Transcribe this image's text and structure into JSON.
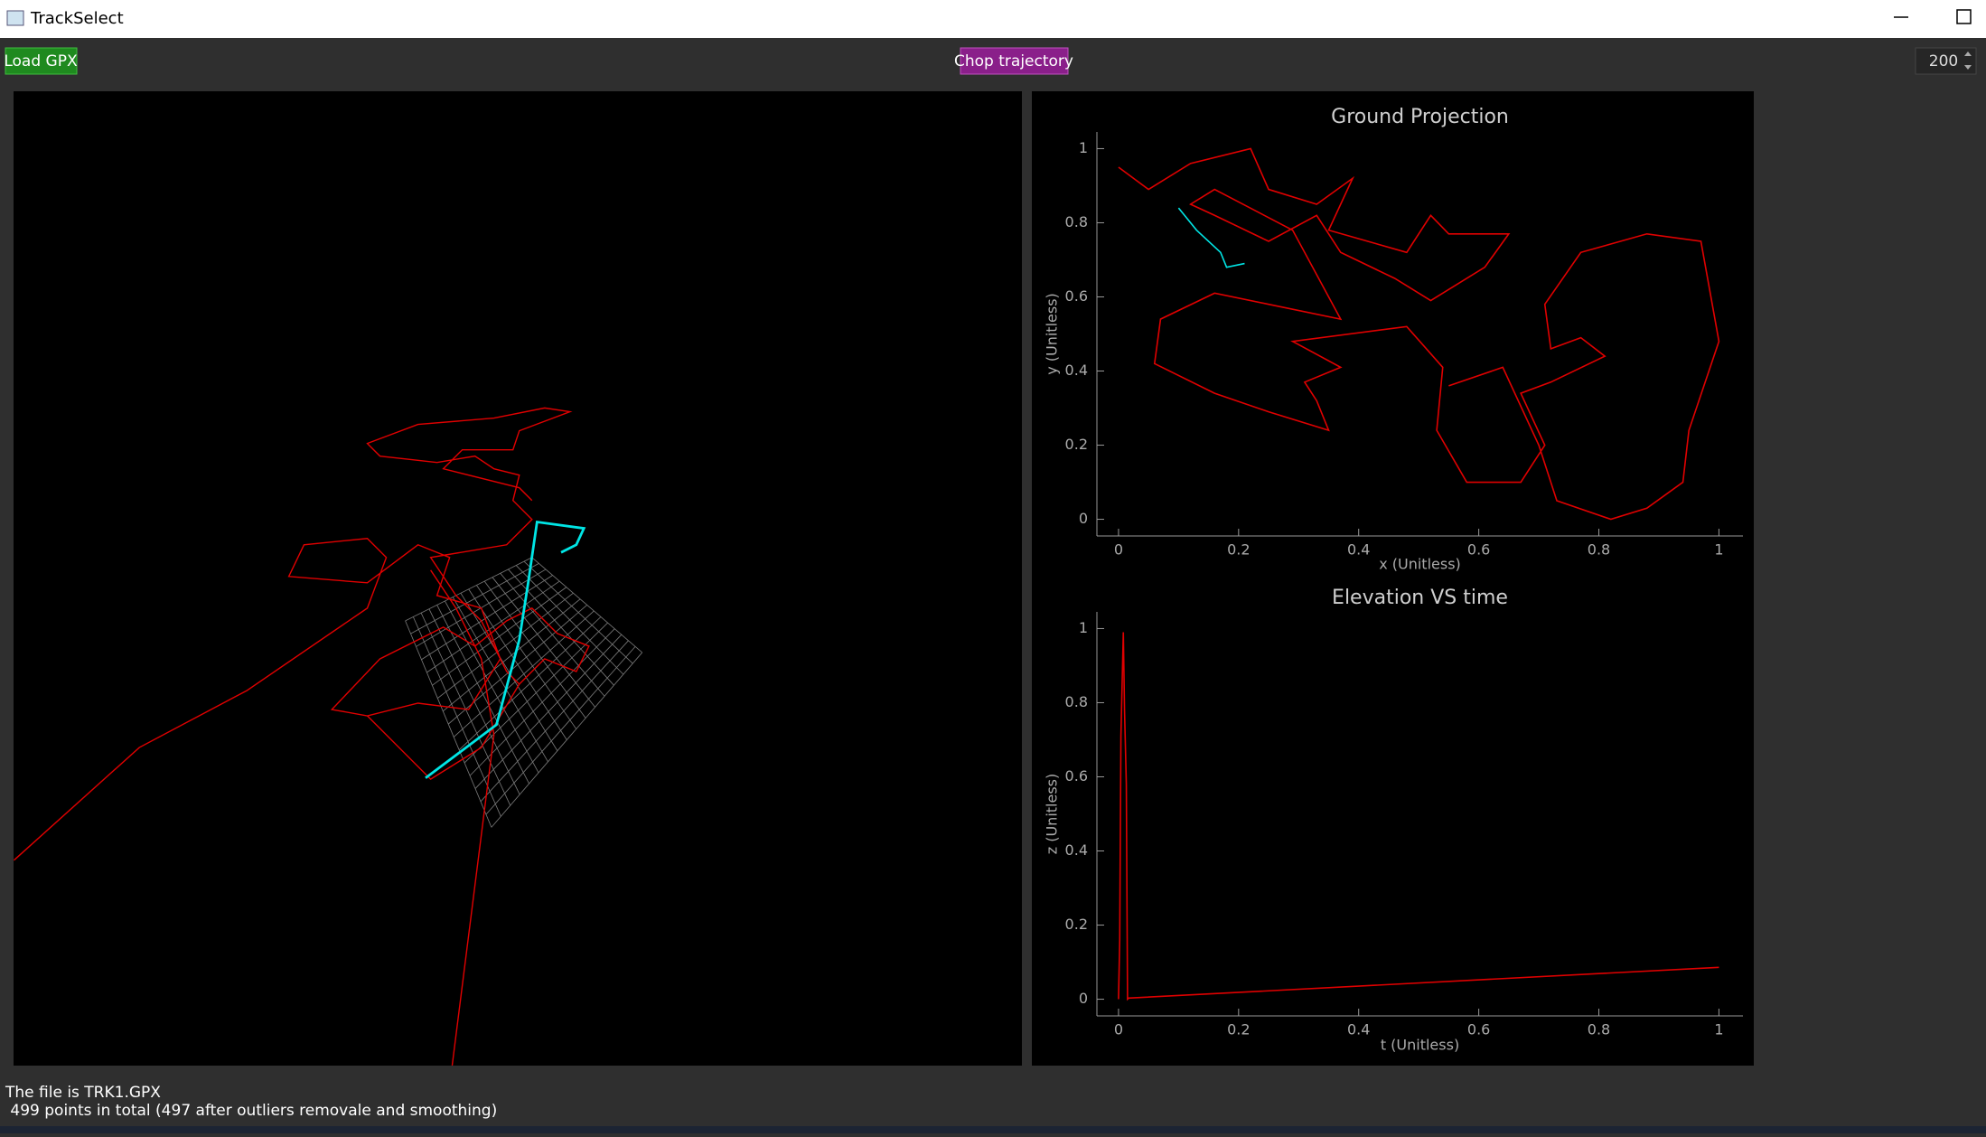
{
  "window": {
    "title": "TrackSelect"
  },
  "toolbar": {
    "load_button": "Load GPX",
    "chop_button": "Chop trajectory",
    "spin_value": 200
  },
  "chart_data": [
    {
      "type": "line",
      "title": "Ground Projection",
      "x_label": "x (Unitless)",
      "y_label": "y (Unitless)",
      "xlim": [
        -0.036,
        1.04
      ],
      "ylim": [
        -0.045,
        1.045
      ],
      "xticks": [
        0,
        0.2,
        0.4,
        0.6,
        0.8,
        1
      ],
      "yticks": [
        0,
        0.2,
        0.4,
        0.6,
        0.8,
        1
      ],
      "series": [
        {
          "color": "#e00000",
          "x": [
            0,
            0.05,
            0.12,
            0.22,
            0.25,
            0.33,
            0.39,
            0.35,
            0.48,
            0.52,
            0.55,
            0.65,
            0.61,
            0.52,
            0.46,
            0.37,
            0.33,
            0.25,
            0.16,
            0.12,
            0.16,
            0.29,
            0.37,
            0.25,
            0.16,
            0.07,
            0.06,
            0.16,
            0.25,
            0.35,
            0.33,
            0.31,
            0.37,
            0.29,
            0.48,
            0.54,
            0.53,
            0.58,
            0.67,
            0.71,
            0.67,
            0.72,
            0.81,
            0.77,
            0.72,
            0.71,
            0.77,
            0.88,
            0.97,
            1.0,
            0.95,
            0.94,
            0.88,
            0.82,
            0.73,
            0.7,
            0.64,
            0.55
          ],
          "values": [
            0.95,
            0.89,
            0.96,
            1.0,
            0.89,
            0.85,
            0.92,
            0.78,
            0.72,
            0.82,
            0.77,
            0.77,
            0.68,
            0.59,
            0.65,
            0.72,
            0.82,
            0.75,
            0.82,
            0.85,
            0.89,
            0.78,
            0.54,
            0.58,
            0.61,
            0.54,
            0.42,
            0.34,
            0.29,
            0.24,
            0.32,
            0.37,
            0.41,
            0.48,
            0.52,
            0.41,
            0.24,
            0.1,
            0.1,
            0.2,
            0.34,
            0.37,
            0.44,
            0.49,
            0.46,
            0.58,
            0.72,
            0.77,
            0.75,
            0.48,
            0.24,
            0.1,
            0.03,
            0.0,
            0.05,
            0.2,
            0.41,
            0.36
          ]
        },
        {
          "color": "#00e5e5",
          "x": [
            0.1,
            0.13,
            0.17,
            0.18,
            0.21
          ],
          "values": [
            0.84,
            0.78,
            0.72,
            0.68,
            0.69
          ]
        }
      ]
    },
    {
      "type": "line",
      "title": "Elevation VS time",
      "x_label": "t (Unitless)",
      "y_label": "z (Unitless)",
      "xlim": [
        -0.036,
        1.04
      ],
      "ylim": [
        -0.045,
        1.045
      ],
      "xticks": [
        0,
        0.2,
        0.4,
        0.6,
        0.8,
        1
      ],
      "yticks": [
        0,
        0.2,
        0.4,
        0.6,
        0.8,
        1
      ],
      "series": [
        {
          "color": "#e00000",
          "x": [
            0,
            0.002,
            0.004,
            0.008,
            0.01,
            0.013,
            0.015,
            0.017,
            1.0
          ],
          "values": [
            0,
            0.16,
            0.71,
            0.99,
            0.78,
            0.58,
            0,
            0.003,
            0.086
          ]
        }
      ]
    }
  ],
  "status": {
    "file_line": "The file is TRK1.GPX",
    "points_line": " 499 points in total (497 after outliers removale and smoothing)"
  }
}
